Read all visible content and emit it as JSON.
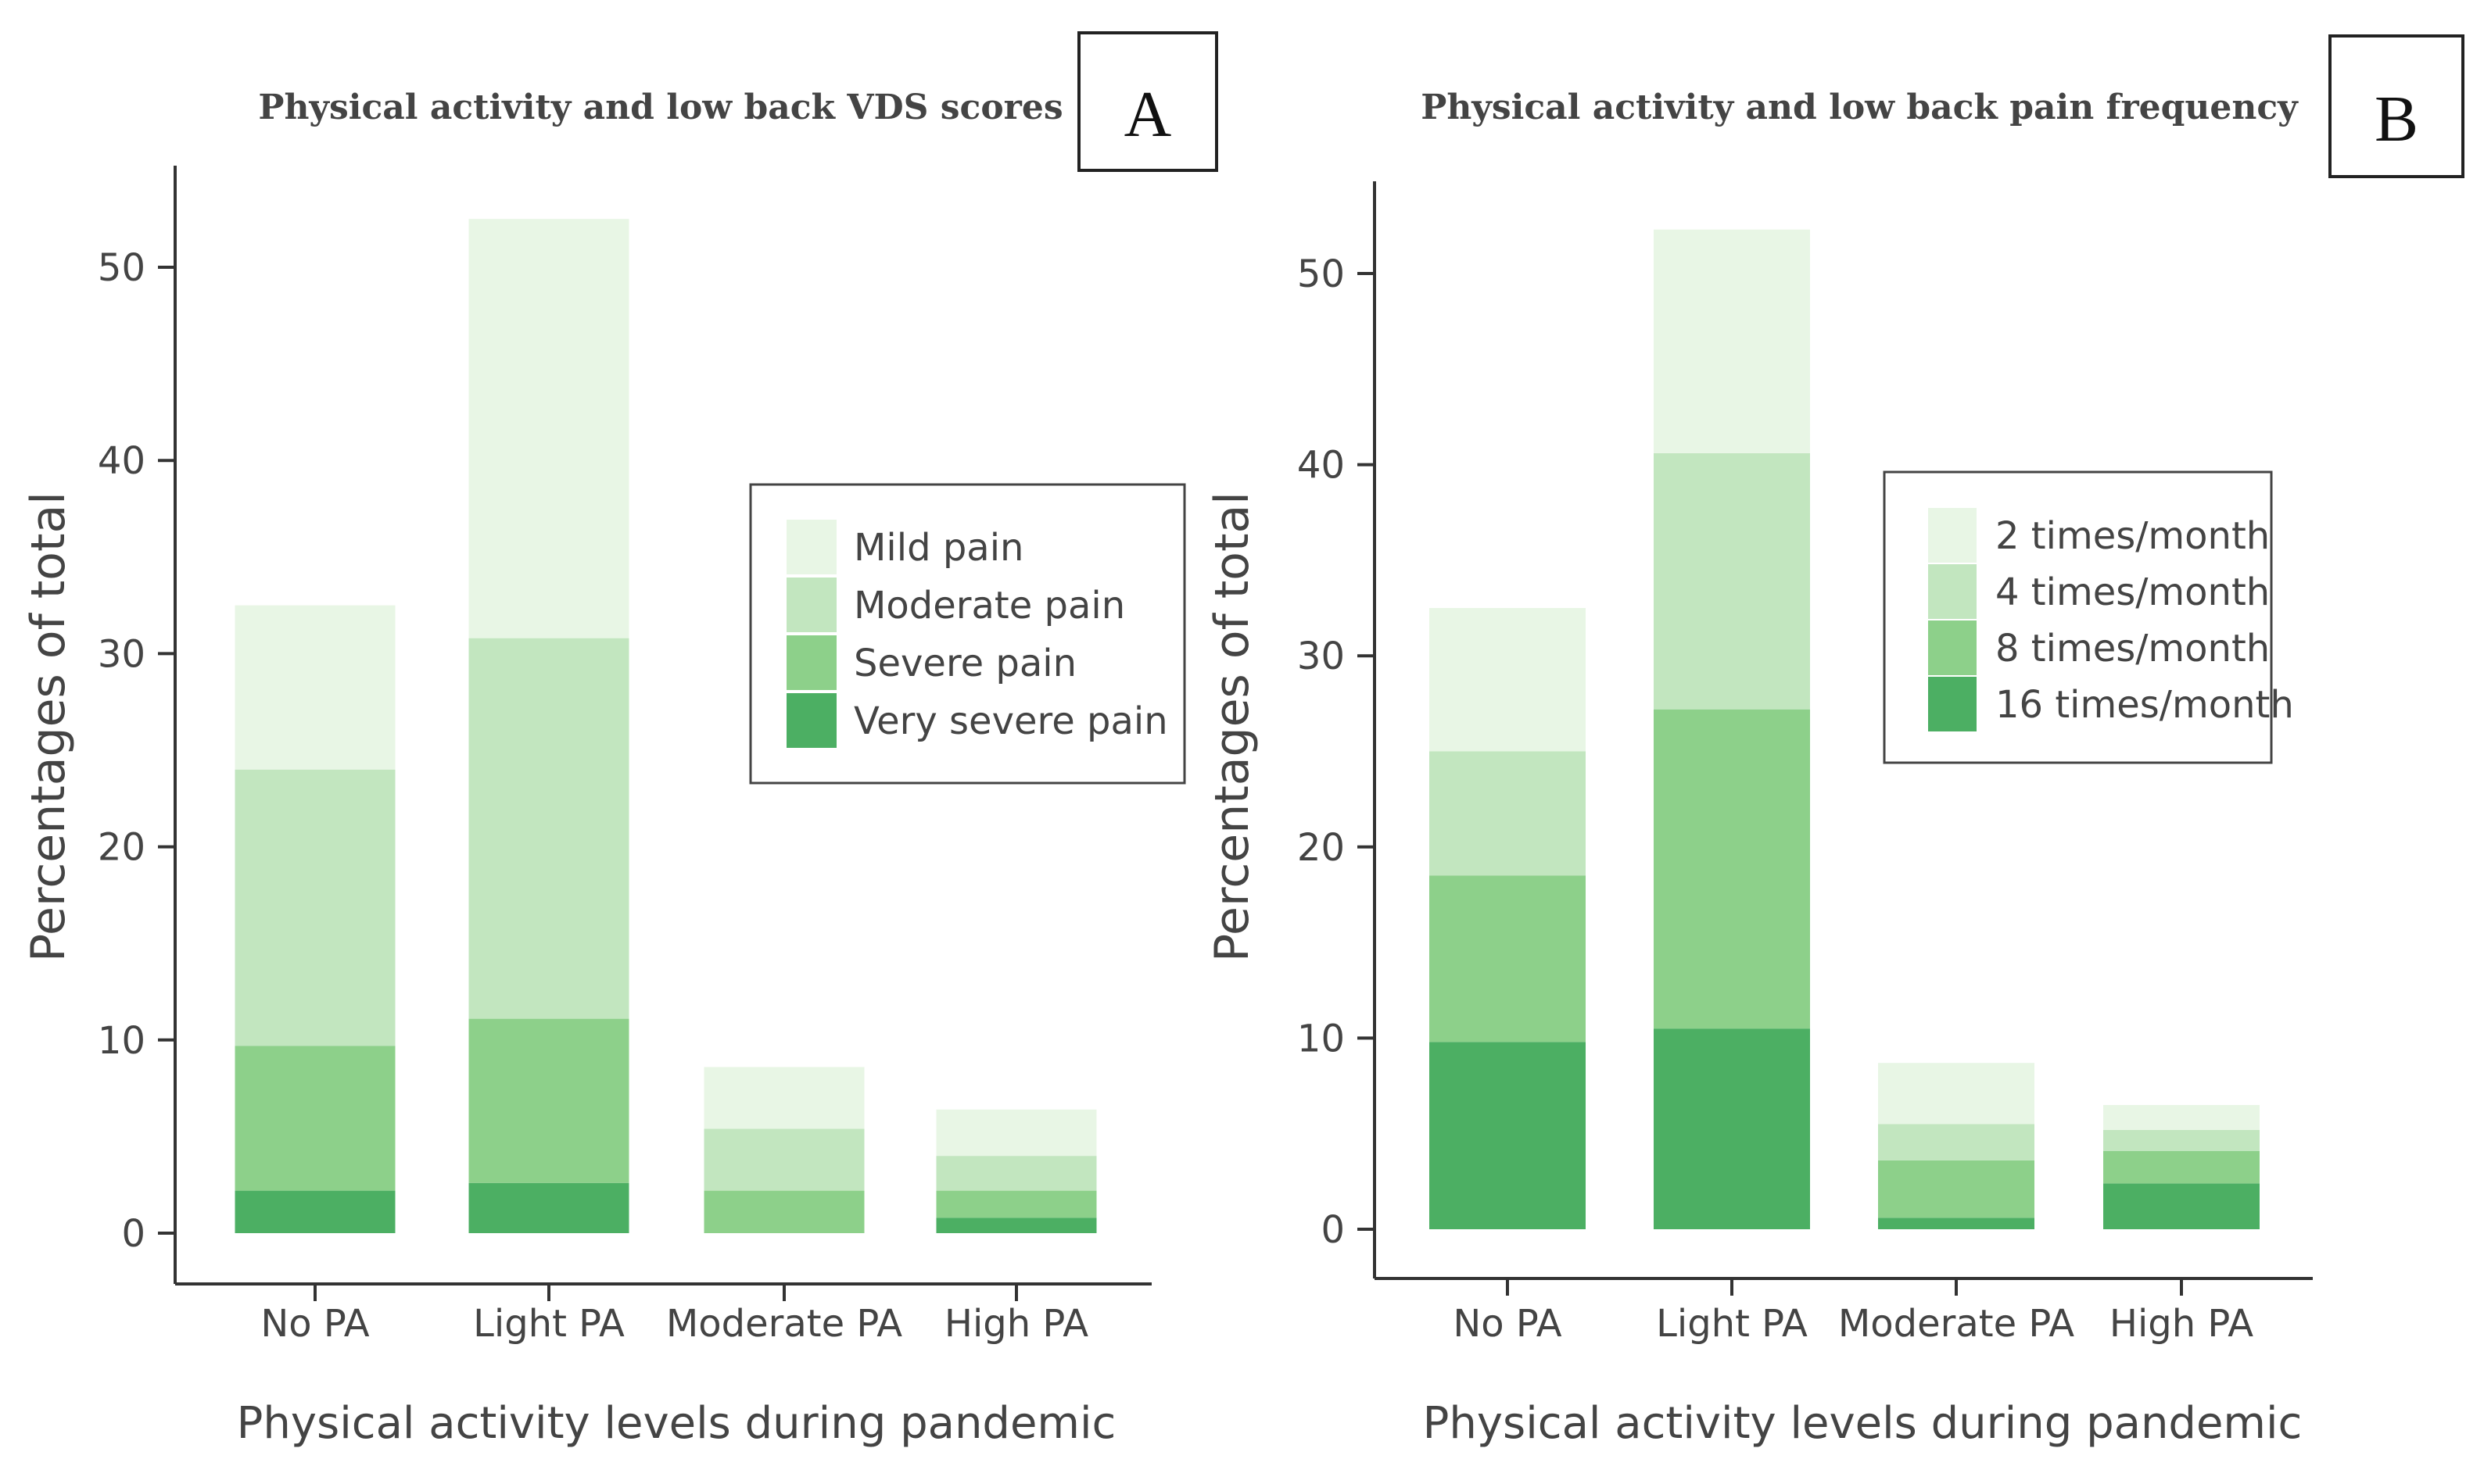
{
  "chart_data": [
    {
      "type": "bar",
      "stacked": true,
      "panel_label": "A",
      "title": "Physical activity and low back VDS scores",
      "xlabel": "Physical activity levels during pandemic",
      "ylabel": "Percentages of total",
      "ylim": [
        0,
        53
      ],
      "yticks": [
        0,
        10,
        20,
        30,
        40,
        50
      ],
      "legend_position": "right",
      "categories": [
        "No PA",
        "Light PA",
        "Moderate PA",
        "High PA"
      ],
      "series": [
        {
          "name": "Very severe pain",
          "color": "#4caf63",
          "values": [
            2.2,
            2.6,
            0.0,
            0.8
          ]
        },
        {
          "name": "Severe pain",
          "color": "#8dd08a",
          "values": [
            7.5,
            8.5,
            2.2,
            1.4
          ]
        },
        {
          "name": "Moderate pain",
          "color": "#c2e6bf",
          "values": [
            14.3,
            19.7,
            3.2,
            1.8
          ]
        },
        {
          "name": "Mild pain",
          "color": "#e8f6e5",
          "values": [
            8.5,
            21.7,
            3.2,
            2.4
          ]
        }
      ]
    },
    {
      "type": "bar",
      "stacked": true,
      "panel_label": "B",
      "title": "Physical activity and low back pain frequency",
      "xlabel": "Physical activity levels during pandemic",
      "ylabel": "Percentages of total",
      "ylim": [
        0,
        55
      ],
      "yticks": [
        0,
        10,
        20,
        30,
        40,
        50
      ],
      "legend_position": "top-right",
      "categories": [
        "No PA",
        "Light PA",
        "Moderate PA",
        "High PA"
      ],
      "series": [
        {
          "name": "16 times/month",
          "color": "#4caf63",
          "values": [
            9.8,
            10.5,
            0.6,
            2.4
          ]
        },
        {
          "name": "8 times/month",
          "color": "#8dd08a",
          "values": [
            8.7,
            16.7,
            3.0,
            1.7
          ]
        },
        {
          "name": "4 times/month",
          "color": "#c2e6bf",
          "values": [
            6.5,
            13.4,
            1.9,
            1.1
          ]
        },
        {
          "name": "2 times/month",
          "color": "#e8f6e5",
          "values": [
            7.5,
            11.7,
            3.2,
            1.3
          ]
        }
      ]
    }
  ]
}
